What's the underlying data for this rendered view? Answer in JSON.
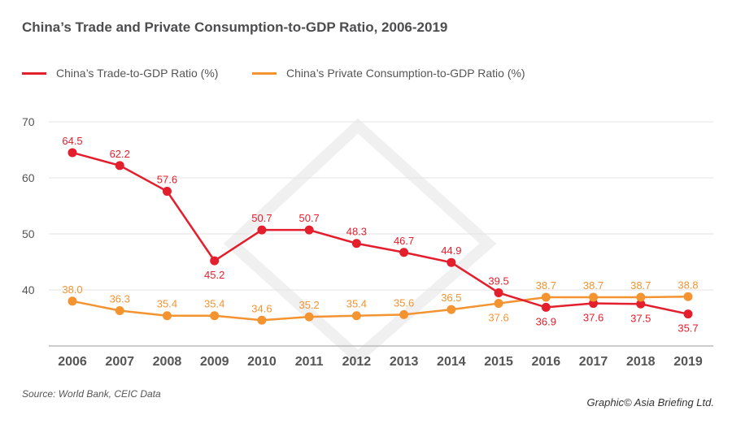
{
  "chart_data": {
    "type": "line",
    "title": "China’s Trade and Private Consumption-to-GDP Ratio, 2006-2019",
    "xlabel": "",
    "ylabel": "",
    "x": [
      "2006",
      "2007",
      "2008",
      "2009",
      "2010",
      "2011",
      "2012",
      "2013",
      "2014",
      "2015",
      "2016",
      "2017",
      "2018",
      "2019"
    ],
    "ylim": [
      30,
      70
    ],
    "yticks": [
      40,
      50,
      60,
      70
    ],
    "grid": true,
    "legend": "top-left",
    "series": [
      {
        "name": "China’s Trade-to-GDP Ratio (%)",
        "color": "#e31e2d",
        "values": [
          64.5,
          62.2,
          57.6,
          45.2,
          50.7,
          50.7,
          48.3,
          46.7,
          44.9,
          39.5,
          36.9,
          37.6,
          37.5,
          35.7
        ]
      },
      {
        "name": "China’s Private Consumption-to-GDP Ratio (%)",
        "color": "#f39431",
        "values": [
          38.0,
          36.3,
          35.4,
          35.4,
          34.6,
          35.2,
          35.4,
          35.6,
          36.5,
          37.6,
          38.7,
          38.7,
          38.7,
          38.8
        ]
      }
    ]
  },
  "source": "Source: World Bank, CEIC Data",
  "credit": "Graphic© Asia Briefing Ltd."
}
